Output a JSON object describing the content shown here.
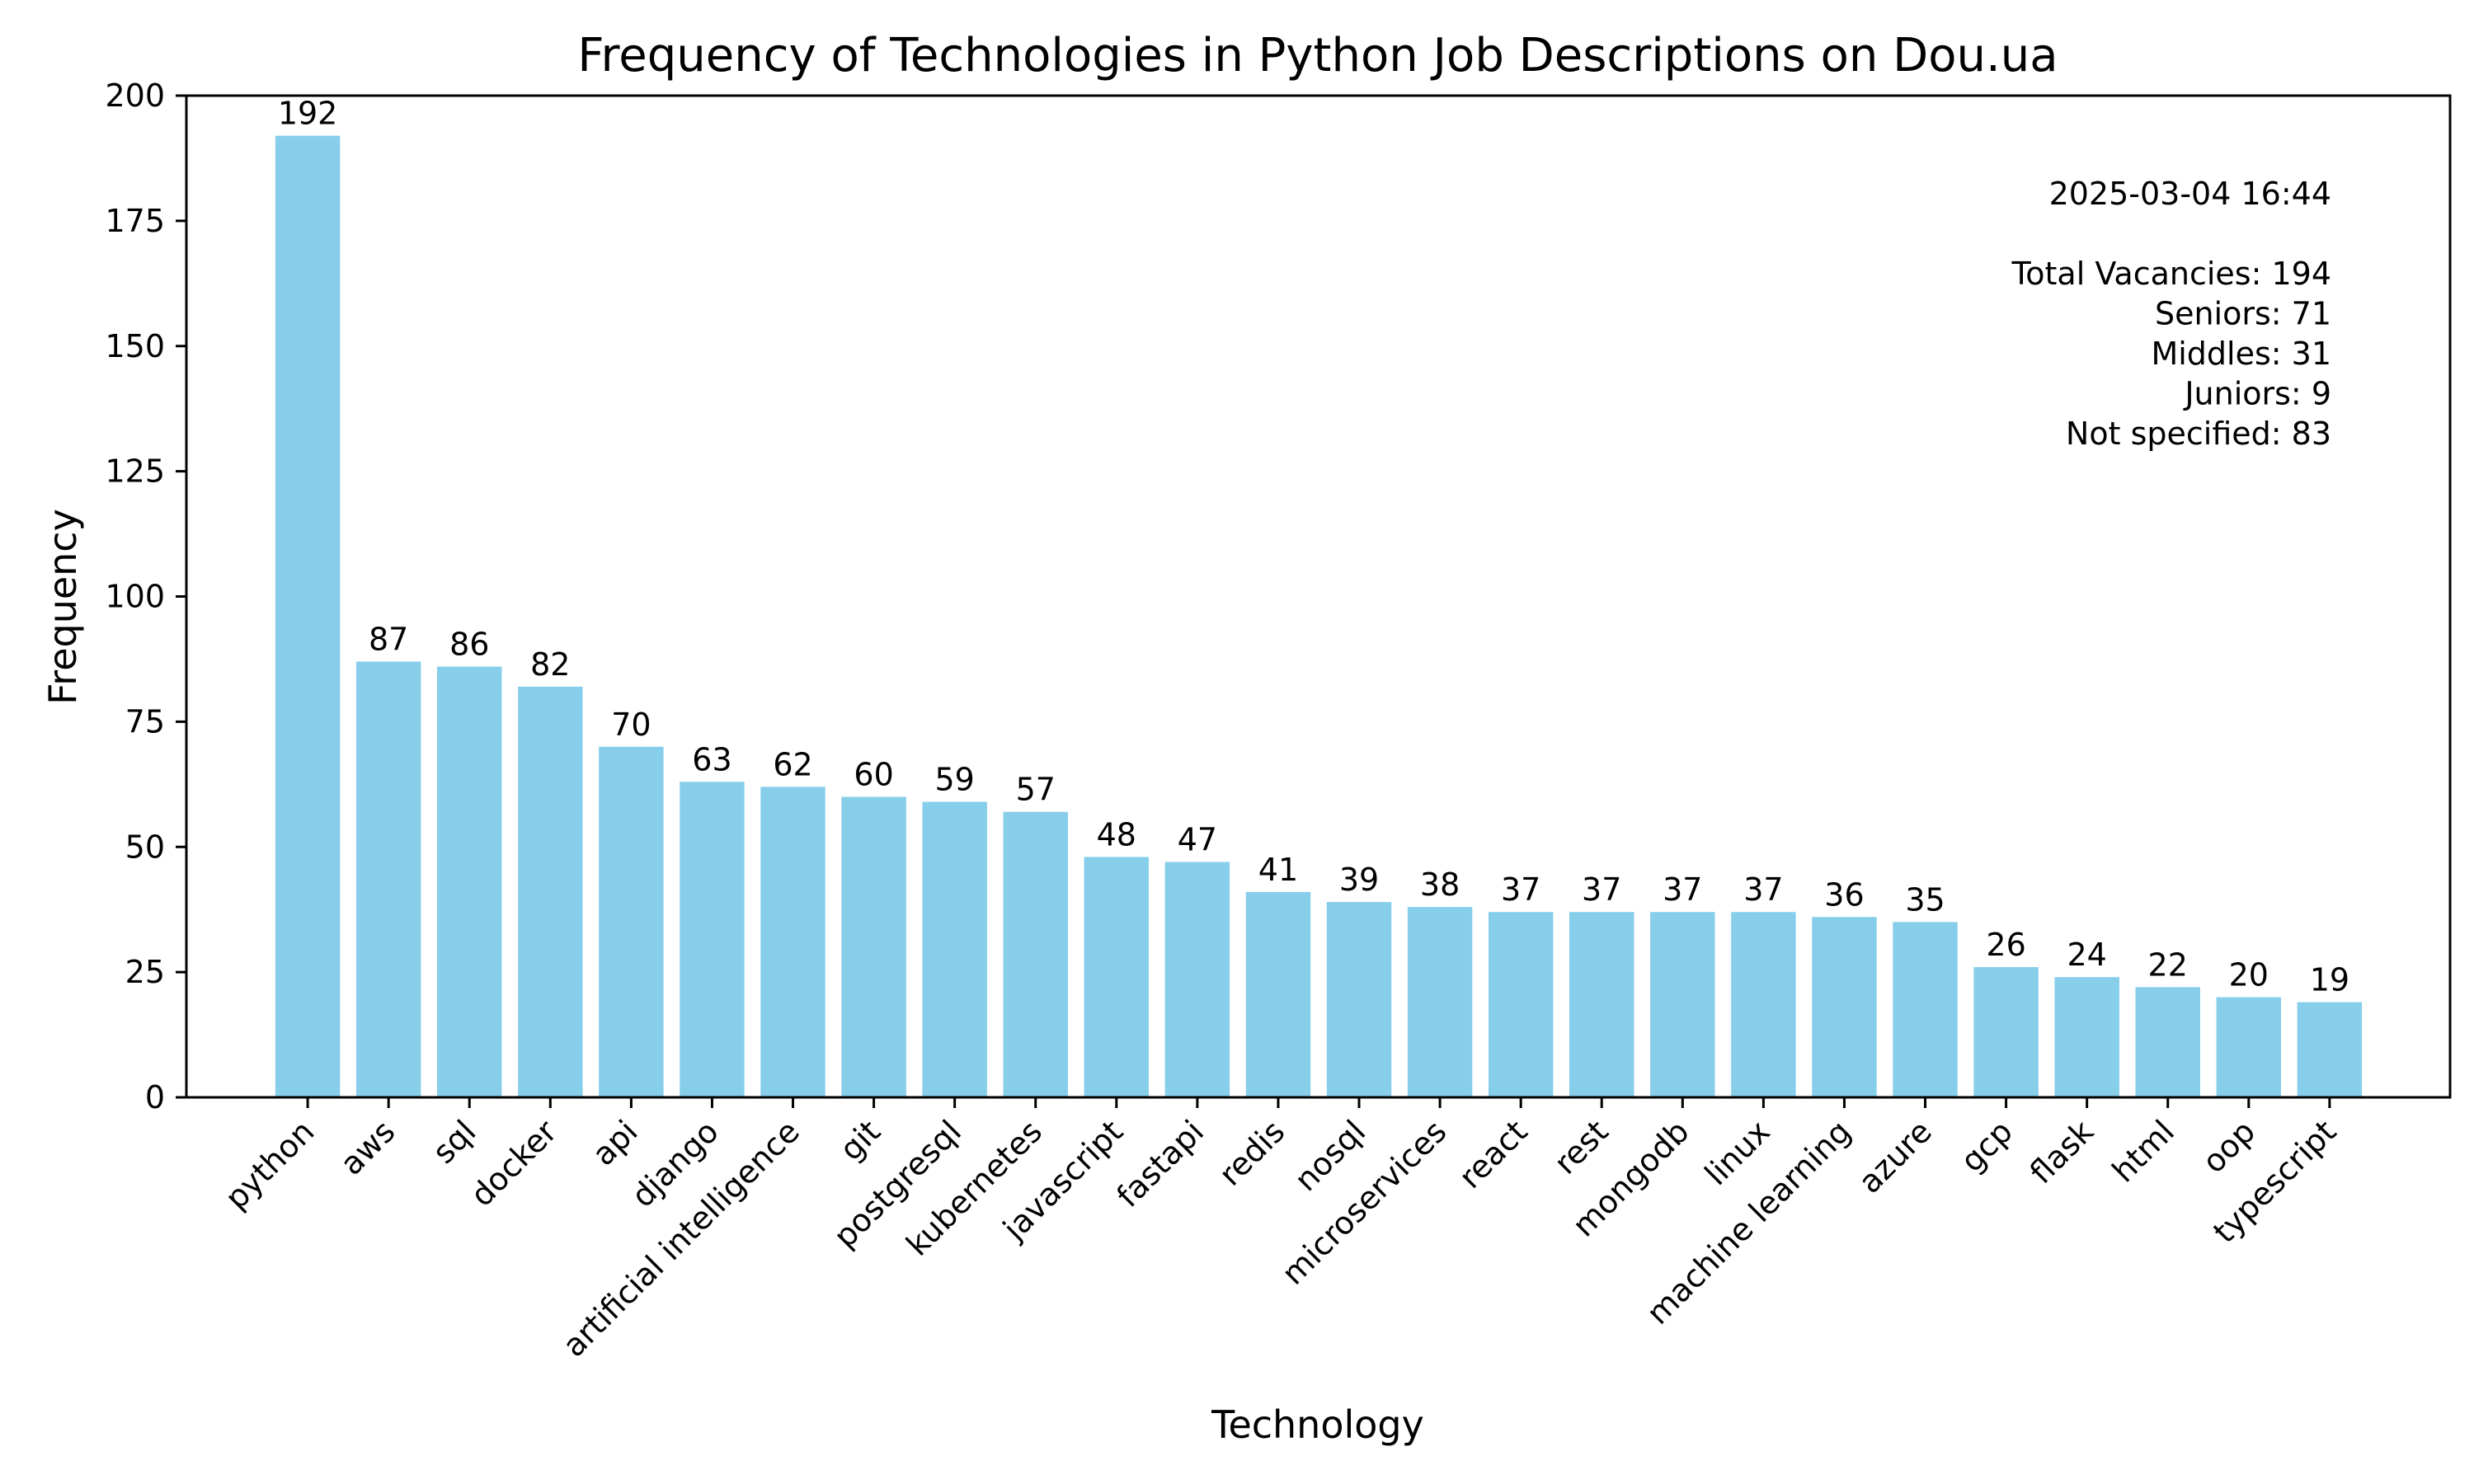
{
  "chart_data": {
    "type": "bar",
    "title": "Frequency of Technologies in Python Job Descriptions on Dou.ua",
    "xlabel": "Technology",
    "ylabel": "Frequency",
    "ylim": [
      0,
      200
    ],
    "yticks": [
      0,
      25,
      50,
      75,
      100,
      125,
      150,
      175,
      200
    ],
    "categories": [
      "python",
      "aws",
      "sql",
      "docker",
      "api",
      "django",
      "artificial intelligence",
      "git",
      "postgresql",
      "kubernetes",
      "javascript",
      "fastapi",
      "redis",
      "nosql",
      "microservices",
      "react",
      "rest",
      "mongodb",
      "linux",
      "machine learning",
      "azure",
      "gcp",
      "flask",
      "html",
      "oop",
      "typescript"
    ],
    "values": [
      192,
      87,
      86,
      82,
      70,
      63,
      62,
      60,
      59,
      57,
      48,
      47,
      41,
      39,
      38,
      37,
      37,
      37,
      37,
      36,
      35,
      26,
      24,
      22,
      20,
      19
    ],
    "bar_color": "#87ceeb",
    "grid": false,
    "annotations": [
      "2025-03-04 16:44",
      "",
      "Total Vacancies: 194",
      "Seniors: 71",
      "Middles: 31",
      "Juniors: 9",
      "Not specified: 83"
    ]
  }
}
